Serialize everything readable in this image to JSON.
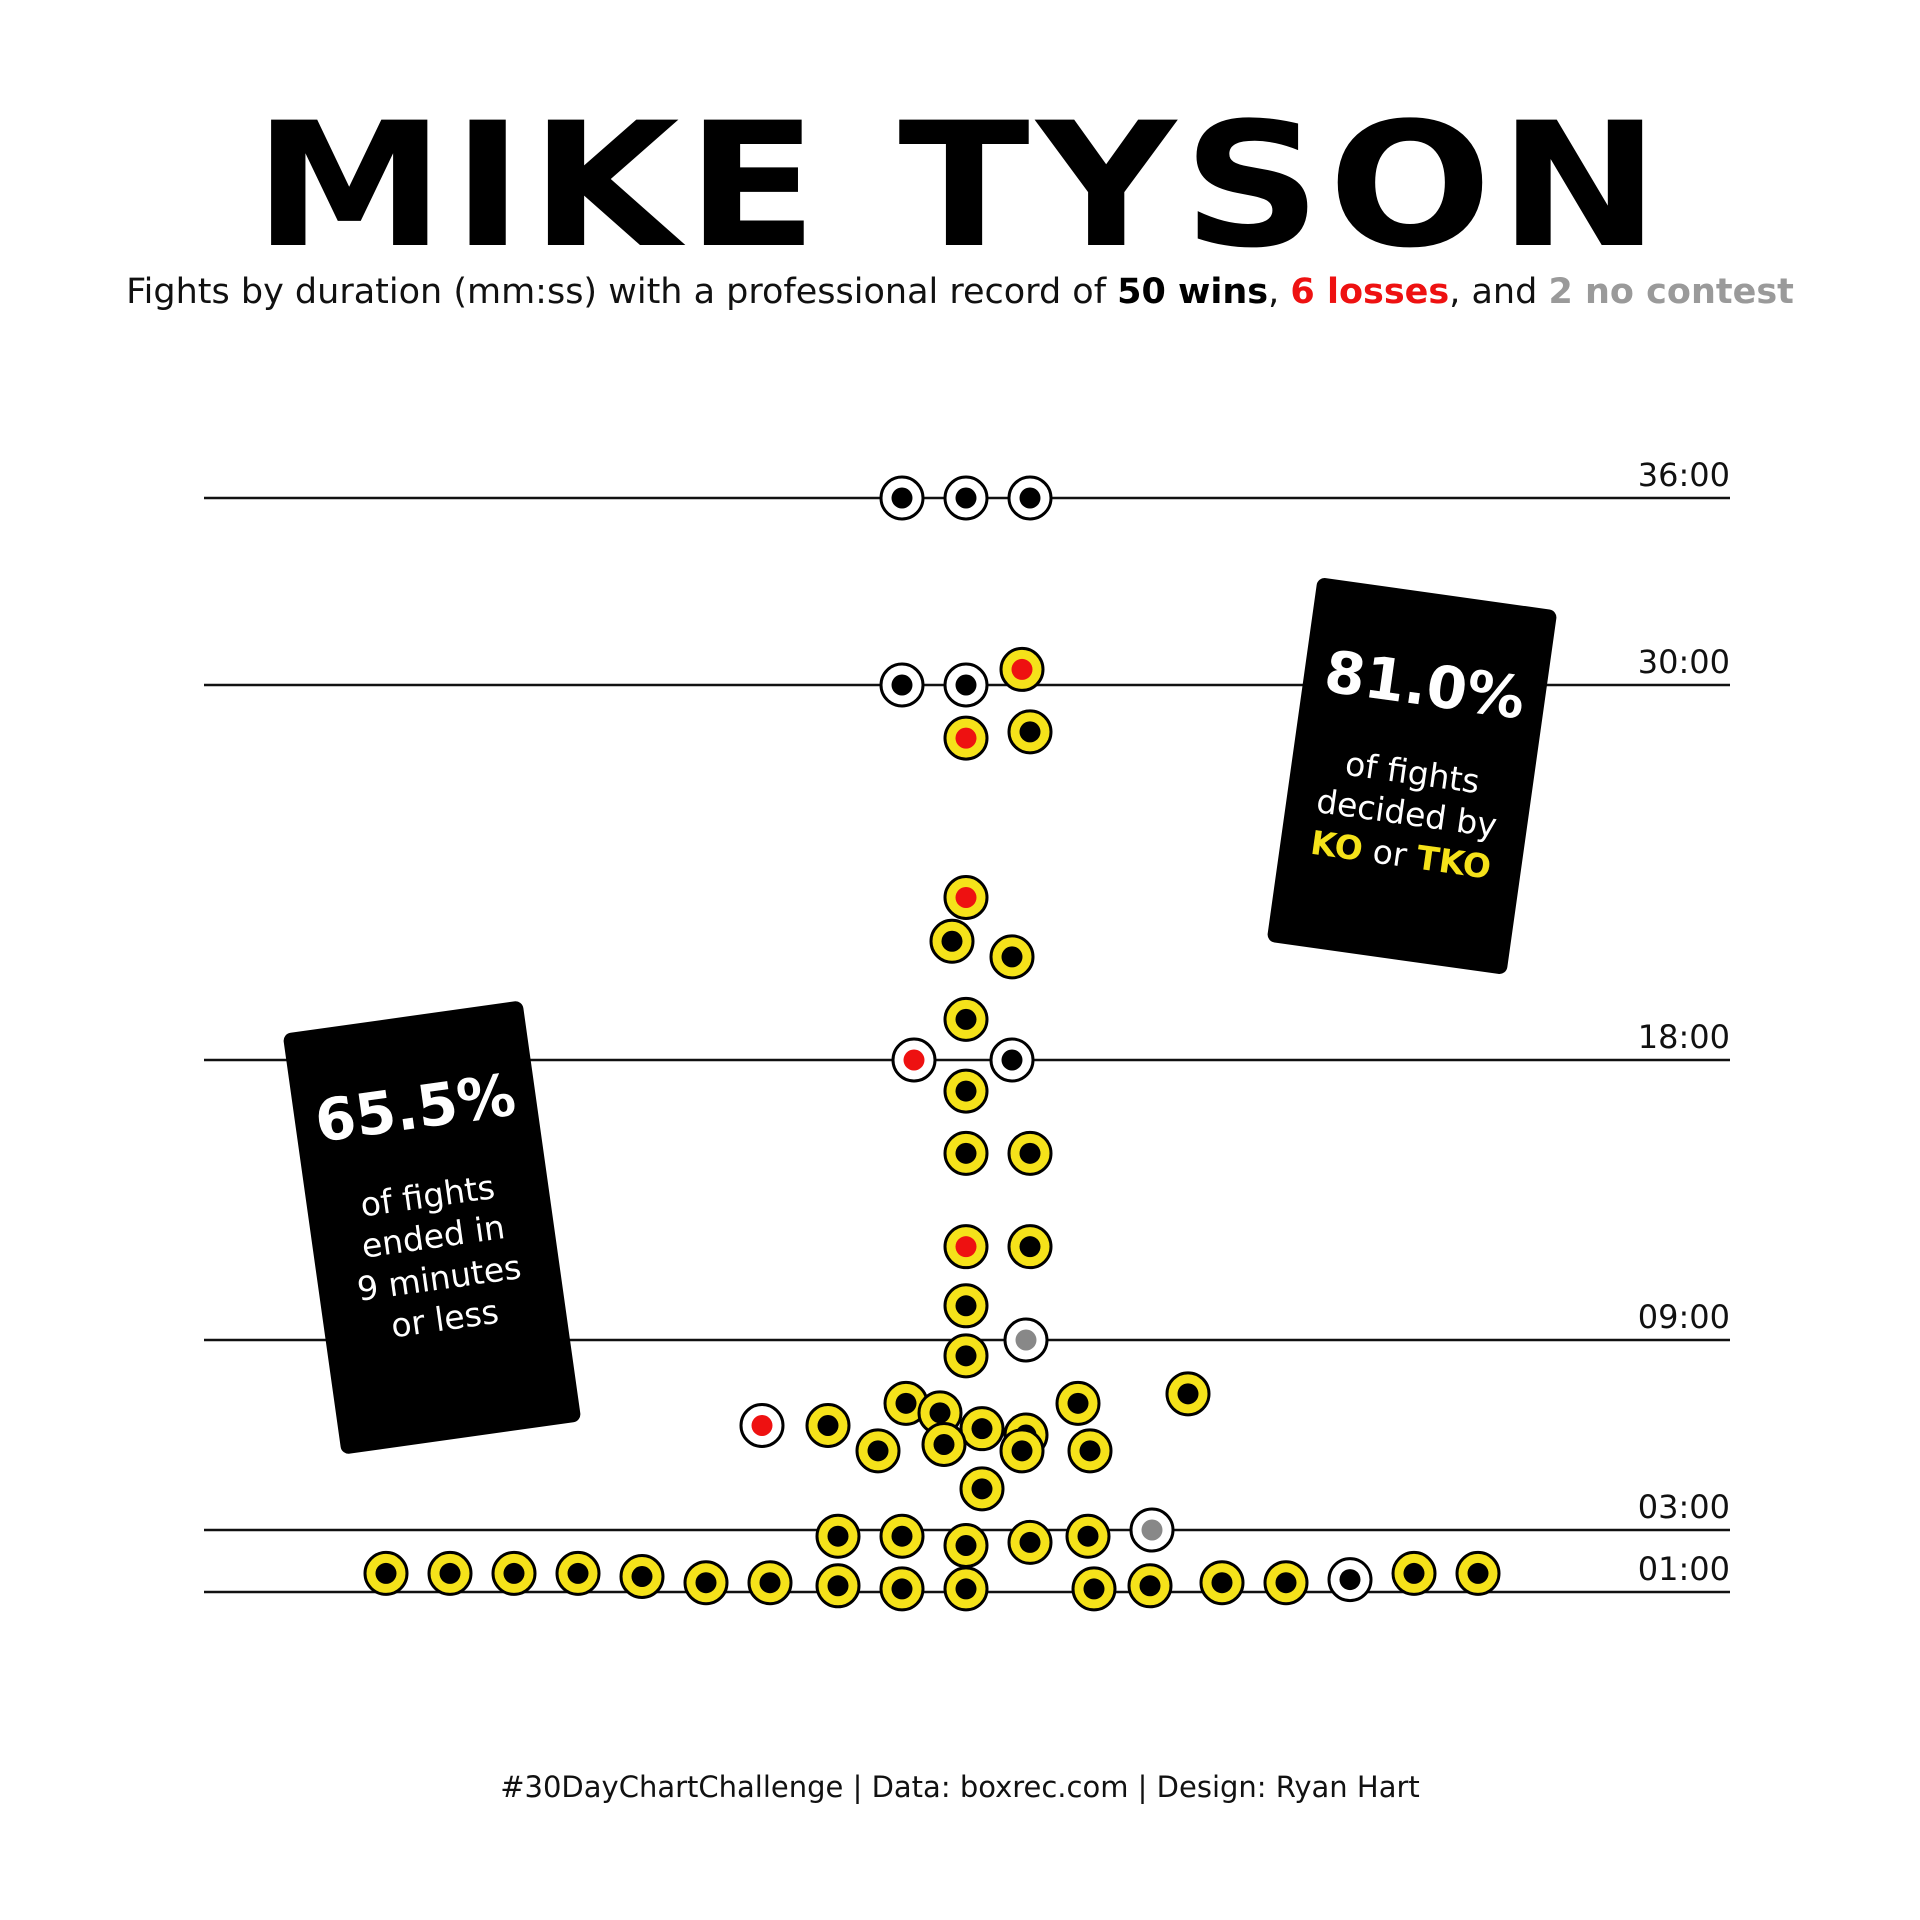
{
  "title": "MIKE TYSON",
  "subtitle": {
    "prefix": "Fights by duration (mm:ss) with a professional record of ",
    "wins": "50 wins",
    "sep1": ", ",
    "losses": "6 losses",
    "sep2": ", and ",
    "no_contest": "2 no contest"
  },
  "cards": {
    "left": {
      "pct": "65.5%",
      "line1": "of fights",
      "line2": "ended in",
      "line3": "9 minutes",
      "line4": "or less"
    },
    "right": {
      "pct": "81.0%",
      "line1": "of fights",
      "line2": "decided by",
      "ko": "KO",
      "or": " or ",
      "tko": "TKO"
    }
  },
  "footer": "#30DayChartChallenge | Data: boxrec.com | Design: Ryan Hart",
  "colors": {
    "ko_tko_ring": "#f5e21a",
    "decision_ring": "#ffffff",
    "win_dot": "#000000",
    "loss_dot": "#ee1111",
    "no_contest_dot": "#888888",
    "card_bg": "#000000"
  },
  "chart_data": {
    "type": "scatter",
    "description_axis": "y = fight duration in minutes (mm:ss)",
    "y_ticks": [
      {
        "label": "36:00",
        "value": 36
      },
      {
        "label": "30:00",
        "value": 30
      },
      {
        "label": "18:00",
        "value": 18
      },
      {
        "label": "09:00",
        "value": 9
      },
      {
        "label": "03:00",
        "value": 3
      },
      {
        "label": "01:00",
        "value": 1
      }
    ],
    "legend": {
      "ring": {
        "ko_tko": "yellow ring = KO or TKO",
        "decision": "white ring = not KO/TKO"
      },
      "dot": {
        "win": "black",
        "loss": "red",
        "no_contest": "grey"
      }
    },
    "fights": [
      {
        "minutes": 36.0,
        "result": "win",
        "method": "decision"
      },
      {
        "minutes": 36.0,
        "result": "win",
        "method": "decision"
      },
      {
        "minutes": 36.0,
        "result": "win",
        "method": "decision"
      },
      {
        "minutes": 30.0,
        "result": "win",
        "method": "decision"
      },
      {
        "minutes": 30.0,
        "result": "win",
        "method": "decision"
      },
      {
        "minutes": 30.5,
        "result": "loss",
        "method": "ko_tko"
      },
      {
        "minutes": 28.3,
        "result": "loss",
        "method": "ko_tko"
      },
      {
        "minutes": 28.5,
        "result": "win",
        "method": "ko_tko"
      },
      {
        "minutes": 23.2,
        "result": "loss",
        "method": "ko_tko"
      },
      {
        "minutes": 21.8,
        "result": "win",
        "method": "ko_tko"
      },
      {
        "minutes": 21.3,
        "result": "win",
        "method": "ko_tko"
      },
      {
        "minutes": 19.3,
        "result": "win",
        "method": "ko_tko"
      },
      {
        "minutes": 18.0,
        "result": "loss",
        "method": "decision"
      },
      {
        "minutes": 18.0,
        "result": "win",
        "method": "decision"
      },
      {
        "minutes": 17.0,
        "result": "win",
        "method": "ko_tko"
      },
      {
        "minutes": 15.0,
        "result": "win",
        "method": "ko_tko"
      },
      {
        "minutes": 15.0,
        "result": "win",
        "method": "ko_tko"
      },
      {
        "minutes": 12.0,
        "result": "loss",
        "method": "ko_tko"
      },
      {
        "minutes": 12.0,
        "result": "win",
        "method": "ko_tko"
      },
      {
        "minutes": 10.1,
        "result": "win",
        "method": "ko_tko"
      },
      {
        "minutes": 9.0,
        "result": "no_contest",
        "method": "decision"
      },
      {
        "minutes": 8.5,
        "result": "win",
        "method": "ko_tko"
      },
      {
        "minutes": 7.3,
        "result": "win",
        "method": "ko_tko"
      },
      {
        "minutes": 7.0,
        "result": "win",
        "method": "ko_tko"
      },
      {
        "minutes": 7.0,
        "result": "win",
        "method": "ko_tko"
      },
      {
        "minutes": 6.3,
        "result": "loss",
        "method": "decision"
      },
      {
        "minutes": 6.2,
        "result": "win",
        "method": "ko_tko"
      },
      {
        "minutes": 6.3,
        "result": "win",
        "method": "ko_tko"
      },
      {
        "minutes": 6.7,
        "result": "win",
        "method": "ko_tko"
      },
      {
        "minutes": 6.0,
        "result": "win",
        "method": "ko_tko"
      },
      {
        "minutes": 5.5,
        "result": "win",
        "method": "ko_tko"
      },
      {
        "minutes": 5.5,
        "result": "win",
        "method": "ko_tko"
      },
      {
        "minutes": 5.5,
        "result": "win",
        "method": "ko_tko"
      },
      {
        "minutes": 5.7,
        "result": "win",
        "method": "ko_tko"
      },
      {
        "minutes": 4.3,
        "result": "win",
        "method": "ko_tko"
      },
      {
        "minutes": 3.0,
        "result": "no_contest",
        "method": "decision"
      },
      {
        "minutes": 2.8,
        "result": "win",
        "method": "ko_tko"
      },
      {
        "minutes": 2.8,
        "result": "win",
        "method": "ko_tko"
      },
      {
        "minutes": 2.8,
        "result": "win",
        "method": "ko_tko"
      },
      {
        "minutes": 2.5,
        "result": "win",
        "method": "ko_tko"
      },
      {
        "minutes": 2.6,
        "result": "win",
        "method": "ko_tko"
      },
      {
        "minutes": 1.6,
        "result": "win",
        "method": "ko_tko"
      },
      {
        "minutes": 1.6,
        "result": "win",
        "method": "ko_tko"
      },
      {
        "minutes": 1.6,
        "result": "win",
        "method": "ko_tko"
      },
      {
        "minutes": 1.6,
        "result": "win",
        "method": "ko_tko"
      },
      {
        "minutes": 1.5,
        "result": "win",
        "method": "ko_tko"
      },
      {
        "minutes": 1.3,
        "result": "win",
        "method": "ko_tko"
      },
      {
        "minutes": 1.3,
        "result": "win",
        "method": "ko_tko"
      },
      {
        "minutes": 1.4,
        "result": "win",
        "method": "decision"
      },
      {
        "minutes": 1.6,
        "result": "win",
        "method": "ko_tko"
      },
      {
        "minutes": 1.6,
        "result": "win",
        "method": "ko_tko"
      },
      {
        "minutes": 1.3,
        "result": "win",
        "method": "ko_tko"
      },
      {
        "minutes": 1.3,
        "result": "win",
        "method": "ko_tko"
      },
      {
        "minutes": 1.2,
        "result": "win",
        "method": "ko_tko"
      },
      {
        "minutes": 1.2,
        "result": "win",
        "method": "ko_tko"
      },
      {
        "minutes": 1.1,
        "result": "win",
        "method": "ko_tko"
      },
      {
        "minutes": 1.1,
        "result": "win",
        "method": "ko_tko"
      },
      {
        "minutes": 1.1,
        "result": "win",
        "method": "ko_tko"
      }
    ]
  }
}
